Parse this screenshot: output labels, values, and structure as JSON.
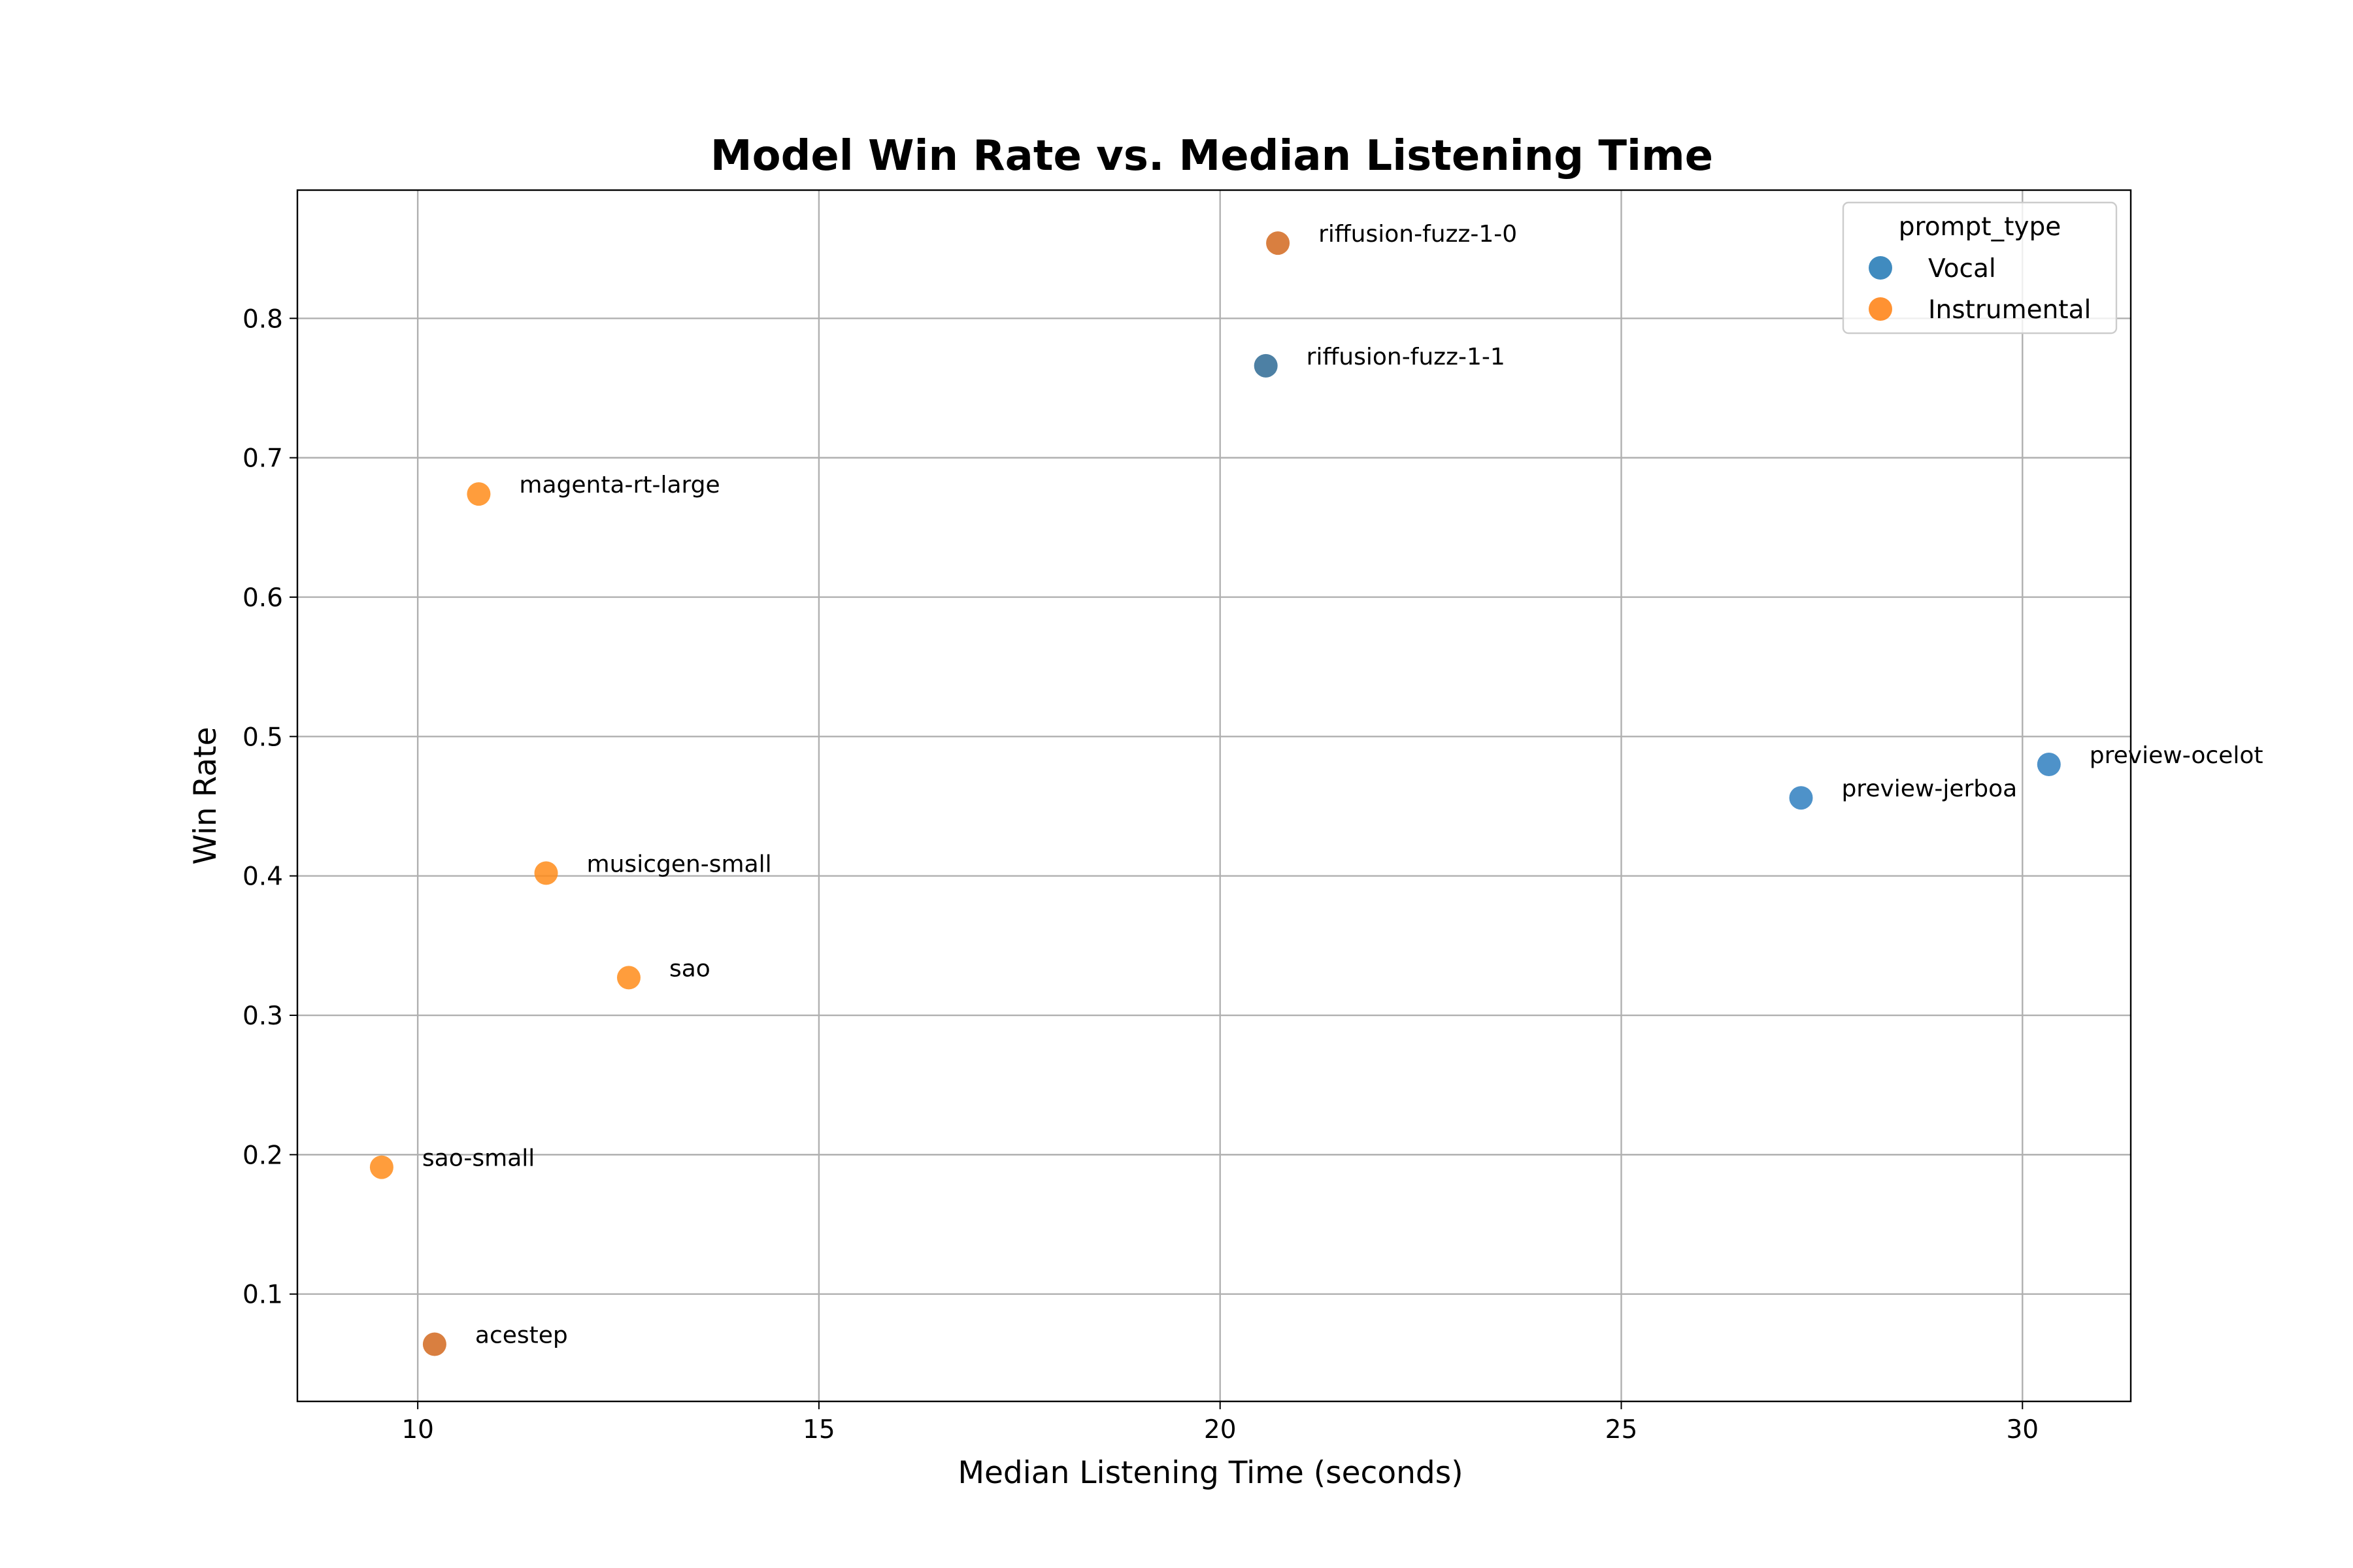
{
  "chart_data": {
    "type": "scatter",
    "title": "Model Win Rate vs. Median Listening Time",
    "xlabel": "Median Listening Time (seconds)",
    "ylabel": "Win Rate",
    "xlim": [
      8.5,
      31.35
    ],
    "ylim": [
      0.023,
      0.892
    ],
    "xticks": [
      10,
      15,
      20,
      25,
      30
    ],
    "yticks": [
      0.1,
      0.2,
      0.3,
      0.4,
      0.5,
      0.6,
      0.7,
      0.8
    ],
    "grid": true,
    "legend": {
      "title": "prompt_type",
      "placement": "top-right",
      "entries": [
        {
          "name": "Vocal",
          "color": "#1f77b4"
        },
        {
          "name": "Instrumental",
          "color": "#ff7f0e"
        }
      ]
    },
    "points": [
      {
        "label": "riffusion-fuzz-1-0",
        "x": 20.72,
        "y": 0.854,
        "color": "#d2691e"
      },
      {
        "label": "riffusion-fuzz-1-1",
        "x": 20.57,
        "y": 0.766,
        "color": "#2e6a94"
      },
      {
        "label": "magenta-rt-large",
        "x": 10.76,
        "y": 0.674,
        "color": "#ff8c1a"
      },
      {
        "label": "preview-ocelot",
        "x": 30.33,
        "y": 0.48,
        "color": "#2f7fbf"
      },
      {
        "label": "preview-jerboa",
        "x": 27.24,
        "y": 0.456,
        "color": "#2f7fbf"
      },
      {
        "label": "musicgen-small",
        "x": 11.6,
        "y": 0.402,
        "color": "#ff8c1a"
      },
      {
        "label": "sao",
        "x": 12.63,
        "y": 0.327,
        "color": "#ff8c1a"
      },
      {
        "label": "sao-small",
        "x": 9.55,
        "y": 0.191,
        "color": "#ff8c1a"
      },
      {
        "label": "acestep",
        "x": 10.21,
        "y": 0.064,
        "color": "#d2691e"
      }
    ]
  }
}
